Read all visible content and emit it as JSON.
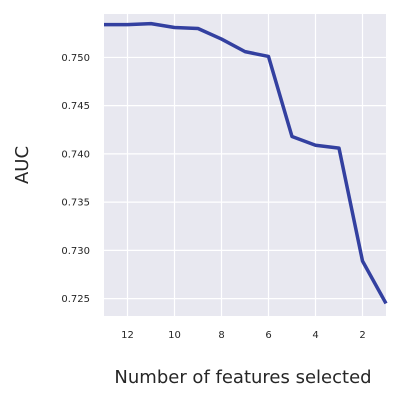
{
  "chart_data": {
    "type": "line",
    "xlabel": "Number of features selected",
    "ylabel": "AUC",
    "xlim": [
      13,
      1
    ],
    "ylim": [
      0.7232,
      0.7545
    ],
    "x_ticks": [
      12,
      10,
      8,
      6,
      4,
      2
    ],
    "y_ticks": [
      0.725,
      0.73,
      0.735,
      0.74,
      0.745,
      0.75
    ],
    "grid": true,
    "series": [
      {
        "x": [
          13,
          12,
          11,
          10,
          9,
          8,
          7,
          6,
          5,
          4,
          3,
          2,
          1
        ],
        "values": [
          0.7534,
          0.7534,
          0.7535,
          0.7531,
          0.753,
          0.7519,
          0.7506,
          0.7501,
          0.7418,
          0.7409,
          0.7406,
          0.7289,
          0.7245
        ],
        "color": "#3340a0"
      }
    ],
    "colors": {
      "plot_background": "#e8e8f0",
      "grid": "#ffffff",
      "line": "#3340a0"
    }
  }
}
